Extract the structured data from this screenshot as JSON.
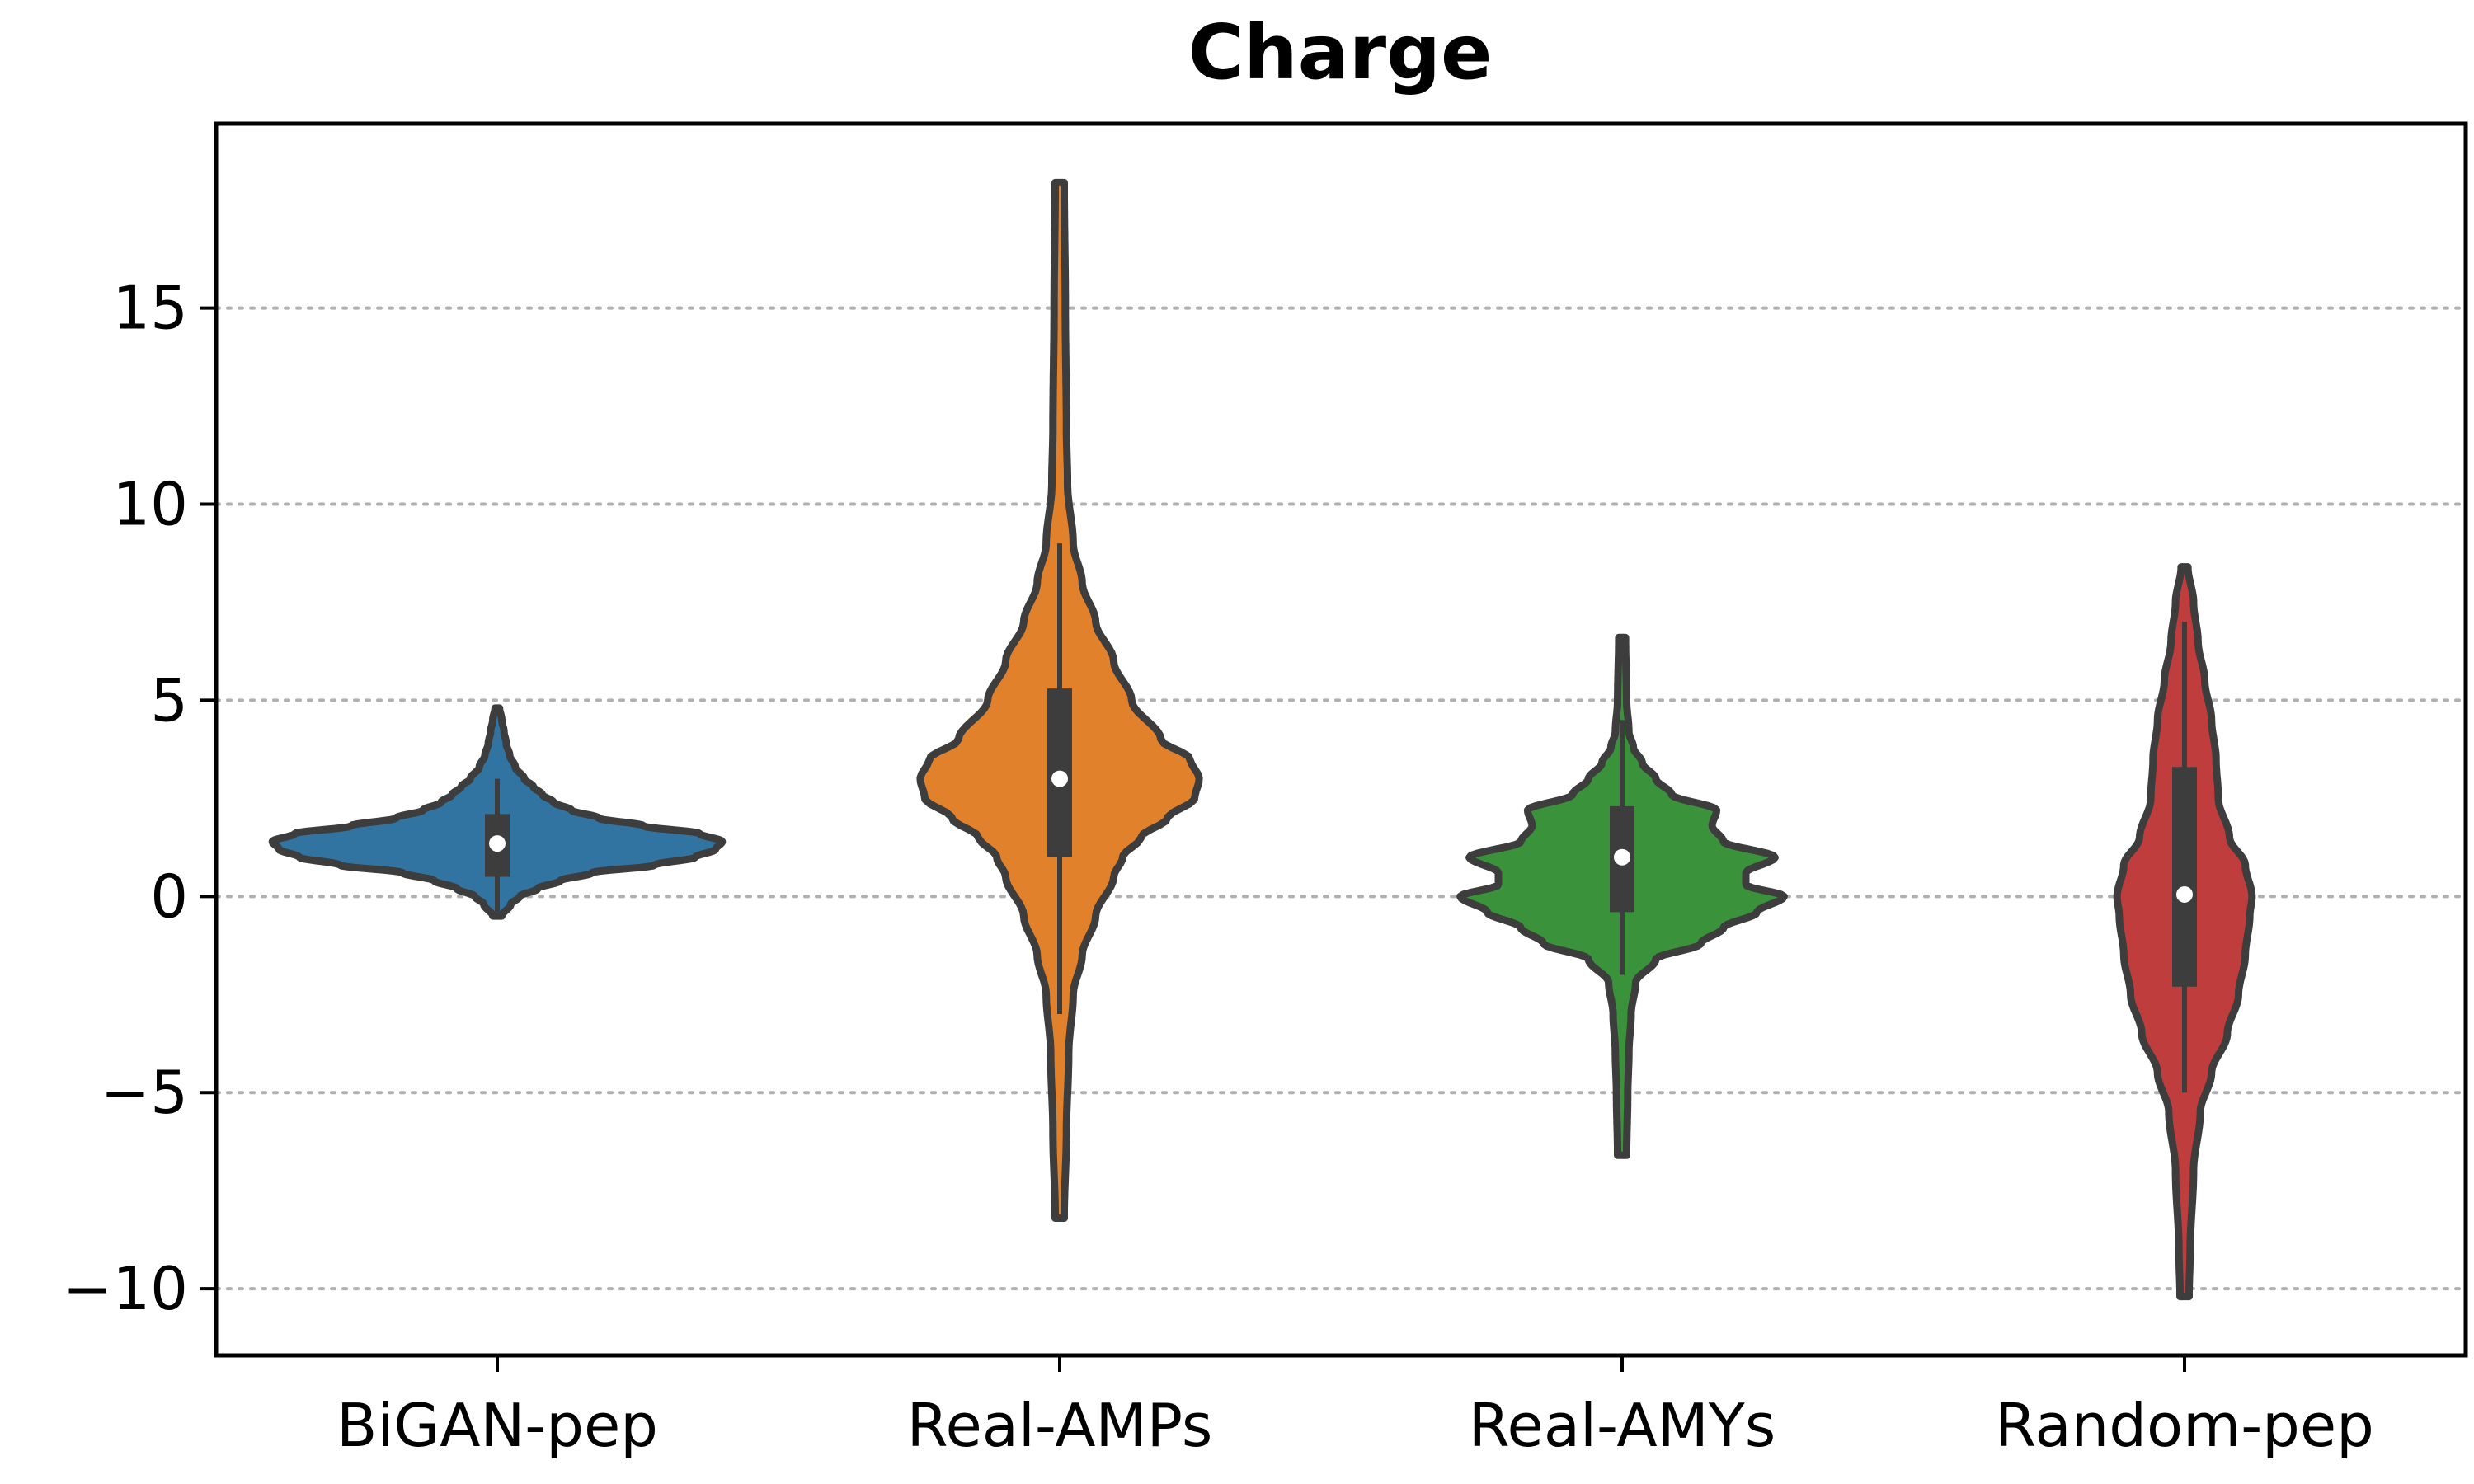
{
  "chart_data": {
    "type": "violin",
    "title": "Charge",
    "xlabel": "",
    "ylabel": "",
    "ylim": [
      -11.7,
      19.7
    ],
    "yticks": [
      -10,
      -5,
      0,
      5,
      10,
      15
    ],
    "ytick_labels": [
      "−10",
      "−5",
      "0",
      "5",
      "10",
      "15"
    ],
    "grid": "horizontal-dotted",
    "categories": [
      "BiGAN-pep",
      "Real-AMPs",
      "Real-AMYs",
      "Random-pep"
    ],
    "series": [
      {
        "name": "BiGAN-pep",
        "color": "#3274a1",
        "min": -0.5,
        "max": 4.8,
        "q1": 0.5,
        "median": 1.35,
        "q3": 2.1,
        "whisker_low": -0.4,
        "whisker_high": 3.0,
        "profile": [
          [
            -0.5,
            0.02
          ],
          [
            -0.2,
            0.06
          ],
          [
            0.0,
            0.1
          ],
          [
            0.2,
            0.18
          ],
          [
            0.4,
            0.28
          ],
          [
            0.6,
            0.42
          ],
          [
            0.8,
            0.7
          ],
          [
            1.0,
            0.88
          ],
          [
            1.2,
            0.97
          ],
          [
            1.4,
            1.0
          ],
          [
            1.6,
            0.9
          ],
          [
            1.8,
            0.65
          ],
          [
            2.0,
            0.45
          ],
          [
            2.2,
            0.33
          ],
          [
            2.4,
            0.25
          ],
          [
            2.6,
            0.2
          ],
          [
            2.8,
            0.16
          ],
          [
            3.0,
            0.12
          ],
          [
            3.3,
            0.08
          ],
          [
            3.6,
            0.055
          ],
          [
            3.9,
            0.04
          ],
          [
            4.2,
            0.03
          ],
          [
            4.5,
            0.02
          ],
          [
            4.8,
            0.01
          ]
        ]
      },
      {
        "name": "Real-AMPs",
        "color": "#e1812c",
        "min": -8.2,
        "max": 18.2,
        "q1": 1.0,
        "median": 3.0,
        "q3": 5.3,
        "whisker_low": -3.0,
        "whisker_high": 9.0,
        "profile": [
          [
            -8.2,
            0.02
          ],
          [
            -6,
            0.03
          ],
          [
            -4,
            0.04
          ],
          [
            -2.5,
            0.06
          ],
          [
            -1.5,
            0.1
          ],
          [
            -0.5,
            0.16
          ],
          [
            0.5,
            0.24
          ],
          [
            1.0,
            0.28
          ],
          [
            1.5,
            0.36
          ],
          [
            2.0,
            0.48
          ],
          [
            2.5,
            0.6
          ],
          [
            3.0,
            0.62
          ],
          [
            3.5,
            0.58
          ],
          [
            4.0,
            0.45
          ],
          [
            5.0,
            0.32
          ],
          [
            6.0,
            0.24
          ],
          [
            7.0,
            0.16
          ],
          [
            8.0,
            0.1
          ],
          [
            9.0,
            0.06
          ],
          [
            10.5,
            0.035
          ],
          [
            12,
            0.03
          ],
          [
            15,
            0.025
          ],
          [
            18.2,
            0.02
          ]
        ]
      },
      {
        "name": "Real-AMYs",
        "color": "#3a923a",
        "min": -6.6,
        "max": 6.6,
        "q1": -0.4,
        "median": 1.0,
        "q3": 2.3,
        "whisker_low": -2.0,
        "whisker_high": 4.5,
        "profile": [
          [
            -6.6,
            0.02
          ],
          [
            -5,
            0.025
          ],
          [
            -4,
            0.03
          ],
          [
            -3,
            0.04
          ],
          [
            -2.2,
            0.06
          ],
          [
            -1.6,
            0.15
          ],
          [
            -1.2,
            0.35
          ],
          [
            -0.8,
            0.45
          ],
          [
            -0.4,
            0.6
          ],
          [
            0.0,
            0.72
          ],
          [
            0.3,
            0.55
          ],
          [
            0.6,
            0.55
          ],
          [
            1.0,
            0.68
          ],
          [
            1.4,
            0.45
          ],
          [
            1.8,
            0.4
          ],
          [
            2.2,
            0.42
          ],
          [
            2.6,
            0.22
          ],
          [
            3.0,
            0.15
          ],
          [
            3.4,
            0.09
          ],
          [
            3.8,
            0.05
          ],
          [
            4.2,
            0.03
          ],
          [
            5.0,
            0.02
          ],
          [
            6.6,
            0.015
          ]
        ]
      },
      {
        "name": "Random-pep",
        "color": "#c03d3e",
        "min": -10.2,
        "max": 8.4,
        "q1": -2.3,
        "median": 0.05,
        "q3": 3.3,
        "whisker_low": -5.0,
        "whisker_high": 7.0,
        "profile": [
          [
            -10.2,
            0.02
          ],
          [
            -9,
            0.025
          ],
          [
            -7,
            0.04
          ],
          [
            -5.5,
            0.07
          ],
          [
            -4.5,
            0.12
          ],
          [
            -3.5,
            0.19
          ],
          [
            -2.5,
            0.24
          ],
          [
            -1.5,
            0.27
          ],
          [
            -0.5,
            0.29
          ],
          [
            0.0,
            0.3
          ],
          [
            0.8,
            0.27
          ],
          [
            1.5,
            0.2
          ],
          [
            2.5,
            0.15
          ],
          [
            3.5,
            0.14
          ],
          [
            4.5,
            0.12
          ],
          [
            5.5,
            0.09
          ],
          [
            6.5,
            0.06
          ],
          [
            7.5,
            0.04
          ],
          [
            8.4,
            0.015
          ]
        ]
      }
    ]
  }
}
